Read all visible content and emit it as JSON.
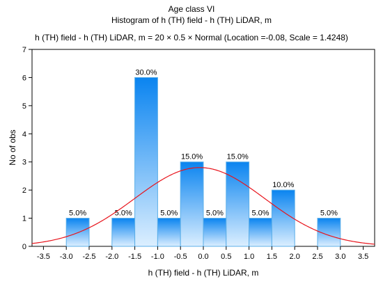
{
  "chart_data": {
    "type": "bar",
    "title": "Age class VI",
    "subtitle": "Histogram of  h (TH) field - h (TH) LiDAR, m",
    "fit_label": "h (TH) field - h (TH) LiDAR, m = 20 × 0.5 × Normal (Location =-0.08, Scale = 1.4248)",
    "xlabel": "h (TH) field - h (TH) LiDAR, m",
    "ylabel": "No of obs",
    "xlim": [
      -3.75,
      3.75
    ],
    "ylim": [
      0,
      7
    ],
    "x_ticks": [
      "-3.5",
      "-3.0",
      "-2.5",
      "-2.0",
      "-1.5",
      "-1.0",
      "-0.5",
      "0.0",
      "0.5",
      "1.0",
      "1.5",
      "2.0",
      "2.5",
      "3.0",
      "3.5"
    ],
    "y_ticks": [
      "0",
      "1",
      "2",
      "3",
      "4",
      "5",
      "6",
      "7"
    ],
    "bins": [
      {
        "from": -3.0,
        "to": -2.5,
        "count": 1,
        "label": "5.0%"
      },
      {
        "from": -2.0,
        "to": -1.5,
        "count": 1,
        "label": "5.0%"
      },
      {
        "from": -1.5,
        "to": -1.0,
        "count": 6,
        "label": "30.0%"
      },
      {
        "from": -1.0,
        "to": -0.5,
        "count": 1,
        "label": "5.0%"
      },
      {
        "from": -0.5,
        "to": 0.0,
        "count": 3,
        "label": "15.0%"
      },
      {
        "from": 0.0,
        "to": 0.5,
        "count": 1,
        "label": "5.0%"
      },
      {
        "from": 0.5,
        "to": 1.0,
        "count": 3,
        "label": "15.0%"
      },
      {
        "from": 1.0,
        "to": 1.5,
        "count": 1,
        "label": "5.0%"
      },
      {
        "from": 1.5,
        "to": 2.0,
        "count": 2,
        "label": "10.0%"
      },
      {
        "from": 2.5,
        "to": 3.0,
        "count": 1,
        "label": "5.0%"
      }
    ],
    "fit": {
      "type": "normal",
      "n": 20,
      "bin_width": 0.5,
      "location": -0.08,
      "scale": 1.4248
    },
    "grid": false,
    "colors": {
      "bar_top": "#0a84f0",
      "bar_bottom": "#dcefff",
      "bar_edge": "#5aaee8",
      "fit_line": "#e8141c"
    }
  }
}
